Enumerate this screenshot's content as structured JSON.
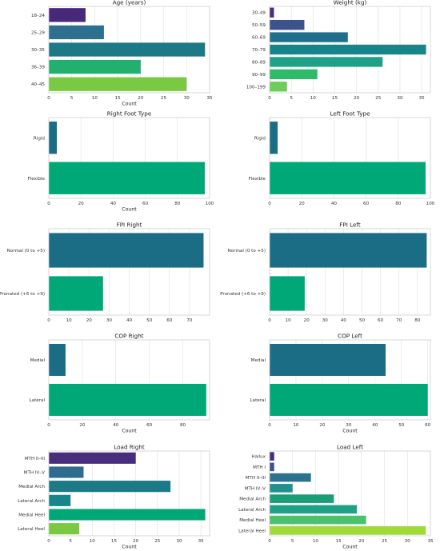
{
  "chart_data": [
    {
      "type": "bar",
      "orientation": "horizontal",
      "title": "Age (years)",
      "xlabel": "Count",
      "categories": [
        "18–24",
        "25–29",
        "30–35",
        "36–39",
        "40–45"
      ],
      "values": [
        8,
        12,
        34,
        20,
        30
      ],
      "colors": [
        "#482878",
        "#2c6f8e",
        "#1b7a85",
        "#23b06f",
        "#7ac943"
      ],
      "xlim": [
        0,
        35
      ],
      "xticks": [
        0,
        5,
        10,
        15,
        20,
        25,
        30,
        35
      ],
      "grid": true
    },
    {
      "type": "bar",
      "orientation": "horizontal",
      "title": "Weight (kg)",
      "xlabel": "",
      "categories": [
        "30–49",
        "50–59",
        "60–69",
        "70–79",
        "80–89",
        "90–99",
        "100–199"
      ],
      "values": [
        1,
        8,
        18,
        36,
        26,
        11,
        4
      ],
      "colors": [
        "#472d7b",
        "#3b528b",
        "#1f6e8c",
        "#16858a",
        "#1fa187",
        "#2dbb69",
        "#6ccd5a"
      ],
      "xlim": [
        0,
        37
      ],
      "xticks": [
        0,
        5,
        10,
        15,
        20,
        25,
        30,
        35
      ],
      "grid": true
    },
    {
      "type": "bar",
      "orientation": "horizontal",
      "title": "Right Foot Type",
      "xlabel": "Count",
      "categories": [
        "Rigid",
        "Flexible"
      ],
      "values": [
        5,
        97
      ],
      "colors": [
        "#1b6c85",
        "#00a878"
      ],
      "xlim": [
        0,
        100
      ],
      "xticks": [
        0,
        20,
        40,
        60,
        80,
        100
      ],
      "grid": true
    },
    {
      "type": "bar",
      "orientation": "horizontal",
      "title": "Left Foot Type",
      "xlabel": "",
      "categories": [
        "Rigid",
        "Flexible"
      ],
      "values": [
        5,
        97
      ],
      "colors": [
        "#1b6c85",
        "#00a878"
      ],
      "xlim": [
        0,
        100
      ],
      "xticks": [
        0,
        20,
        40,
        60,
        80,
        100
      ],
      "grid": true
    },
    {
      "type": "bar",
      "orientation": "horizontal",
      "title": "FPI Right",
      "xlabel": "",
      "categories": [
        "Normal (0 to +5)",
        "Pronated (+6 to +9)"
      ],
      "values": [
        77,
        27
      ],
      "colors": [
        "#1b6c85",
        "#00a878"
      ],
      "xlim": [
        0,
        80
      ],
      "xticks": [
        0,
        10,
        20,
        30,
        40,
        50,
        60,
        70
      ],
      "grid": true
    },
    {
      "type": "bar",
      "orientation": "horizontal",
      "title": "FPI Left",
      "xlabel": "",
      "categories": [
        "Normal (0 to +5)",
        "Pronated (+6 to +9)"
      ],
      "values": [
        85,
        19
      ],
      "colors": [
        "#1b6c85",
        "#00a878"
      ],
      "xlim": [
        0,
        87
      ],
      "xticks": [
        0,
        10,
        20,
        30,
        40,
        50,
        60,
        70,
        80
      ],
      "grid": true
    },
    {
      "type": "bar",
      "orientation": "horizontal",
      "title": "COP Right",
      "xlabel": "Count",
      "categories": [
        "Medial",
        "Lateral"
      ],
      "values": [
        10,
        94
      ],
      "colors": [
        "#1b6c85",
        "#00a878"
      ],
      "xlim": [
        0,
        96
      ],
      "xticks": [
        0,
        20,
        40,
        60,
        80
      ],
      "grid": true
    },
    {
      "type": "bar",
      "orientation": "horizontal",
      "title": "COP Left",
      "xlabel": "Count",
      "categories": [
        "Medial",
        "Lateral"
      ],
      "values": [
        44,
        60
      ],
      "colors": [
        "#1b6c85",
        "#00a878"
      ],
      "xlim": [
        0,
        61
      ],
      "xticks": [
        0,
        10,
        20,
        30,
        40,
        50,
        60
      ],
      "grid": true
    },
    {
      "type": "bar",
      "orientation": "horizontal",
      "title": "Load Right",
      "xlabel": "Count",
      "categories": [
        "MTH II–III",
        "MTH IV–V",
        "Medial Arch",
        "Lateral Arch",
        "Medial Heel",
        "Lateral Heel"
      ],
      "values": [
        20,
        8,
        28,
        5,
        36,
        7
      ],
      "colors": [
        "#472d7b",
        "#2f6b8e",
        "#1b7a85",
        "#17868a",
        "#00a878",
        "#7ac943"
      ],
      "xlim": [
        0,
        37
      ],
      "xticks": [
        0,
        5,
        10,
        15,
        20,
        25,
        30,
        35
      ],
      "grid": true
    },
    {
      "type": "bar",
      "orientation": "horizontal",
      "title": "Load Left",
      "xlabel": "Count",
      "categories": [
        "Hallux",
        "MTH I",
        "MTH II–III",
        "MTH IV–V",
        "Medial Arch",
        "Lateral Arch",
        "Medial Heel",
        "Lateral Heel"
      ],
      "values": [
        1,
        1,
        9,
        5,
        14,
        19,
        21,
        34
      ],
      "colors": [
        "#472d7b",
        "#3b528b",
        "#2c728e",
        "#21918c",
        "#1b9e77",
        "#1fa187",
        "#4ac16d",
        "#a0da39"
      ],
      "xlim": [
        0,
        35
      ],
      "xticks": [
        0,
        5,
        10,
        15,
        20,
        25,
        30,
        35
      ],
      "grid": true
    }
  ]
}
